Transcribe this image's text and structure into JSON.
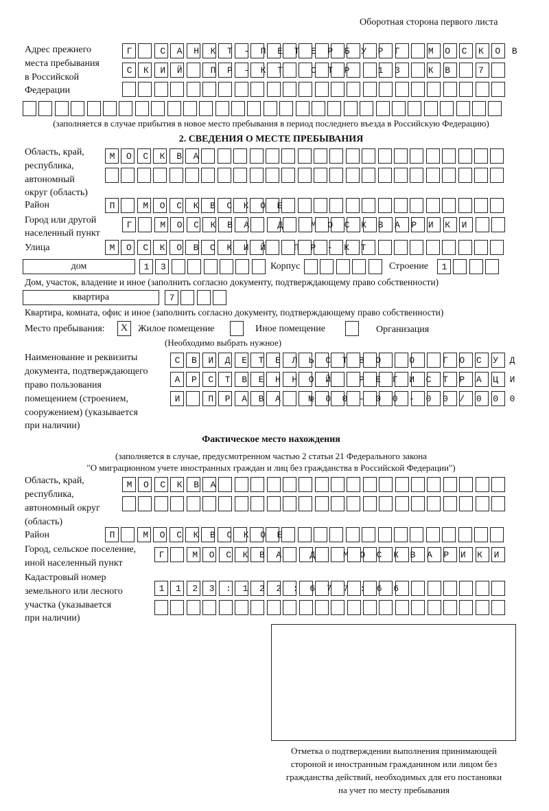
{
  "header": "Оборотная сторона первого листа",
  "previous_address": {
    "label": [
      "Адрес прежнего",
      "места пребывания",
      "в Российской",
      "Федерации"
    ],
    "rows": [
      "Г САНКТ-ПЕТЕРБУРГ МОСКОВ",
      "СКИЙ ПР-КТ СТР 13 КВ 7",
      "",
      ""
    ],
    "note": "(заполняется в случае прибытия в новое место пребывания в период последнего въезда в Российскую Федерацию)"
  },
  "section2": {
    "title": "2. СВЕДЕНИЯ О МЕСТЕ ПРЕБЫВАНИЯ",
    "region_label": [
      "Область, край,",
      "республика,",
      "автономный",
      "округ (область)"
    ],
    "region_rows": [
      "МОСКВА",
      ""
    ],
    "district_label": "Район",
    "district": "П МОСКВСКОЕ",
    "city_label": [
      "Город или другой",
      "населенный пункт"
    ],
    "city": "Г МОСКВА Д МОСКВАРИКИ",
    "street_label": "Улица",
    "street": "МОСКОВСКИЙ ПР-КТ",
    "house_type": "дом",
    "house_number": "13",
    "korpus_label": "Корпус",
    "korpus": "",
    "building_label": "Строение",
    "building": "1",
    "house_note": "Дом, участок, владение и иное (заполнить согласно документу, подтверждающему право собственности)",
    "apartment_type": "квартира",
    "apartment_number": "7",
    "apartment_note": "Квартира, комната, офис и иное (заполнить согласно документу, подтверждающему право собственности)",
    "stay_place_label": "Место пребывания:",
    "options": [
      {
        "label": "Жилое помещение",
        "mark": "X"
      },
      {
        "label": "Иное помещение",
        "mark": ""
      },
      {
        "label": "Организация",
        "mark": ""
      }
    ],
    "choose_note": "(Необходимо выбрать нужное)",
    "doc_label": [
      "Наименование и реквизиты",
      "документа, подтверждающего",
      "право пользования",
      "помещением (строением,",
      "сооружением) (указывается",
      "при наличии)"
    ],
    "doc_rows": [
      "СВИДЕТЕЛЬСТВО О ГОСУД",
      "АРСТВЕННОЙ РЕГИСТРАЦИ",
      "И ПРАВА №00-00-00/000"
    ]
  },
  "actual": {
    "title": "Фактическое место нахождения",
    "note": [
      "(заполняется в случае, предусмотренном частью 2 статьи 21 Федерального закона",
      "\"О миграционном учете иностранных граждан и лиц без гражданства в Российской Федерации\")"
    ],
    "region_label": [
      "Область, край,",
      "республика,",
      "автономный округ",
      "(область)"
    ],
    "region_rows": [
      "МОСКВА",
      ""
    ],
    "district_label": "Район",
    "district": "П МОСКВСКОЕ",
    "city_label": [
      "Город, сельское поселение,",
      "иной населенный пункт"
    ],
    "city": "Г МОСКВА Д МОСКВАРИКИ",
    "cadastral_label": [
      "Кадастровый номер",
      "земельного или лесного",
      "участка (указывается",
      "при наличии)"
    ],
    "cadastral_rows": [
      "1123:122:677:66",
      ""
    ]
  },
  "stamp": {
    "caption": [
      "Отметка о подтверждении выполнения принимающей",
      "стороной и иностранным гражданином или лицом без",
      "гражданства действий, необходимых для его постановки",
      "на учет по месту пребывания"
    ]
  }
}
